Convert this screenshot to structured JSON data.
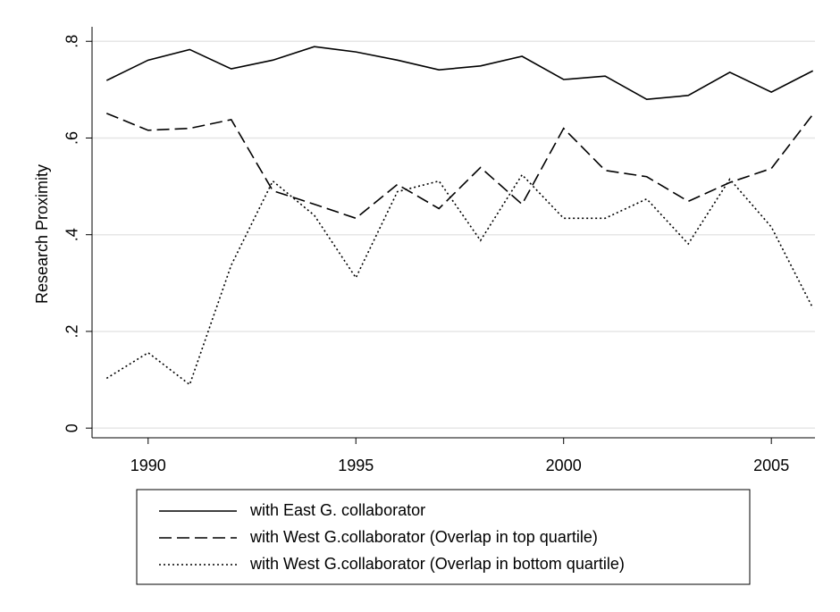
{
  "chart_data": {
    "type": "line",
    "y_label": "Research Proximity",
    "x": [
      1989,
      1990,
      1991,
      1992,
      1993,
      1994,
      1995,
      1996,
      1997,
      1998,
      1999,
      2000,
      2001,
      2002,
      2003,
      2004,
      2005,
      2006
    ],
    "series": [
      {
        "name": "with East G. collaborator",
        "color": "#000000",
        "dash": "solid",
        "values": [
          0.719,
          0.761,
          0.783,
          0.743,
          0.761,
          0.789,
          0.778,
          0.761,
          0.741,
          0.749,
          0.769,
          0.721,
          0.728,
          0.68,
          0.688,
          0.736,
          0.695,
          0.739
        ]
      },
      {
        "name": "with West G.collaborator (Overlap in top quartile)",
        "color": "#000000",
        "dash": "dashed",
        "values": [
          0.651,
          0.616,
          0.62,
          0.638,
          0.491,
          0.463,
          0.434,
          0.504,
          0.454,
          0.539,
          0.463,
          0.62,
          0.533,
          0.52,
          0.469,
          0.508,
          0.537,
          0.649
        ]
      },
      {
        "name": "with West G.collaborator (Overlap in bottom quartile)",
        "color": "#000000",
        "dash": "dotted",
        "values": [
          0.103,
          0.156,
          0.09,
          0.337,
          0.511,
          0.44,
          0.311,
          0.489,
          0.511,
          0.388,
          0.524,
          0.434,
          0.434,
          0.474,
          0.381,
          0.515,
          0.416,
          0.248
        ]
      }
    ],
    "xlim": [
      1988.65,
      2006.05
    ],
    "xticks": [
      1990,
      1995,
      2000,
      2005
    ],
    "ylim": [
      -0.02,
      0.83
    ],
    "yticks": [
      0,
      {
        "value": 0.2,
        "label": ".2"
      },
      {
        "value": 0.4,
        "label": ".4"
      },
      {
        "value": 0.6,
        "label": ".6"
      },
      {
        "value": 0.8,
        "label": ".8"
      }
    ],
    "grid": true,
    "legend": "bottom"
  }
}
